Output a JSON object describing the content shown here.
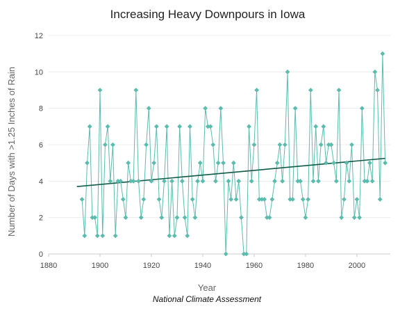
{
  "chart_data": {
    "type": "line",
    "title": "Increasing Heavy Downpours in Iowa",
    "xlabel": "Year",
    "ylabel": "Number of Days with >1.25 Inches of Rain",
    "source": "National Climate Assessment",
    "xlim": [
      1880,
      2013
    ],
    "ylim": [
      0,
      12
    ],
    "x_ticks": [
      "1880",
      "1900",
      "1920",
      "1940",
      "1960",
      "1980",
      "2000"
    ],
    "y_ticks": [
      "0",
      "2",
      "4",
      "6",
      "8",
      "10",
      "12"
    ],
    "grid": true,
    "colors": {
      "series": "#5bbcae",
      "trend": "#0e5a45"
    },
    "series": [
      {
        "x": [
          1893,
          1894,
          1895,
          1896,
          1897,
          1898,
          1899,
          1900,
          1901,
          1902,
          1903,
          1904,
          1905,
          1906,
          1907,
          1908,
          1909,
          1910,
          1911,
          1912,
          1913,
          1914,
          1915,
          1916,
          1917,
          1918,
          1919,
          1920,
          1921,
          1922,
          1923,
          1924,
          1925,
          1926,
          1927,
          1928,
          1929,
          1930,
          1931,
          1932,
          1933,
          1934,
          1935,
          1936,
          1937,
          1938,
          1939,
          1940,
          1941,
          1942,
          1943,
          1944,
          1945,
          1946,
          1947,
          1948,
          1949,
          1950,
          1951,
          1952,
          1953,
          1954,
          1955,
          1956,
          1957,
          1958,
          1959,
          1960,
          1961,
          1962,
          1963,
          1964,
          1965,
          1966,
          1967,
          1968,
          1969,
          1970,
          1971,
          1972,
          1973,
          1974,
          1975,
          1976,
          1977,
          1978,
          1979,
          1980,
          1981,
          1982,
          1983,
          1984,
          1985,
          1986,
          1987,
          1988,
          1989,
          1990,
          1991,
          1992,
          1993,
          1994,
          1995,
          1996,
          1997,
          1998,
          1999,
          2000,
          2001,
          2002,
          2003,
          2004,
          2005,
          2006,
          2007,
          2008,
          2009,
          2010,
          2011
        ],
        "values": [
          3,
          1,
          5,
          7,
          2,
          2,
          1,
          9,
          1,
          6,
          7,
          4,
          6,
          1,
          4,
          4,
          3,
          2,
          5,
          4,
          4,
          9,
          4,
          2,
          3,
          6,
          8,
          4,
          5,
          7,
          3,
          2,
          4,
          7,
          1,
          4,
          1,
          2,
          7,
          4,
          2,
          1,
          7,
          3,
          2,
          4,
          5,
          4,
          8,
          7,
          7,
          6,
          4,
          5,
          8,
          5,
          0,
          4,
          3,
          5,
          3,
          4,
          2,
          0,
          0,
          7,
          4,
          6,
          9,
          3,
          3,
          3,
          2,
          2,
          3,
          4,
          5,
          6,
          4,
          6,
          10,
          3,
          3,
          8,
          4,
          4,
          3,
          2,
          3,
          9,
          4,
          7,
          4,
          6,
          7,
          5,
          6,
          6,
          5,
          4,
          9,
          2,
          3,
          5,
          4,
          6,
          2,
          3,
          2,
          8,
          4,
          4,
          5,
          4,
          10,
          9,
          3,
          11,
          5
        ]
      }
    ],
    "trend": {
      "x": [
        1891,
        2011
      ],
      "y": [
        3.7,
        5.25
      ]
    }
  }
}
